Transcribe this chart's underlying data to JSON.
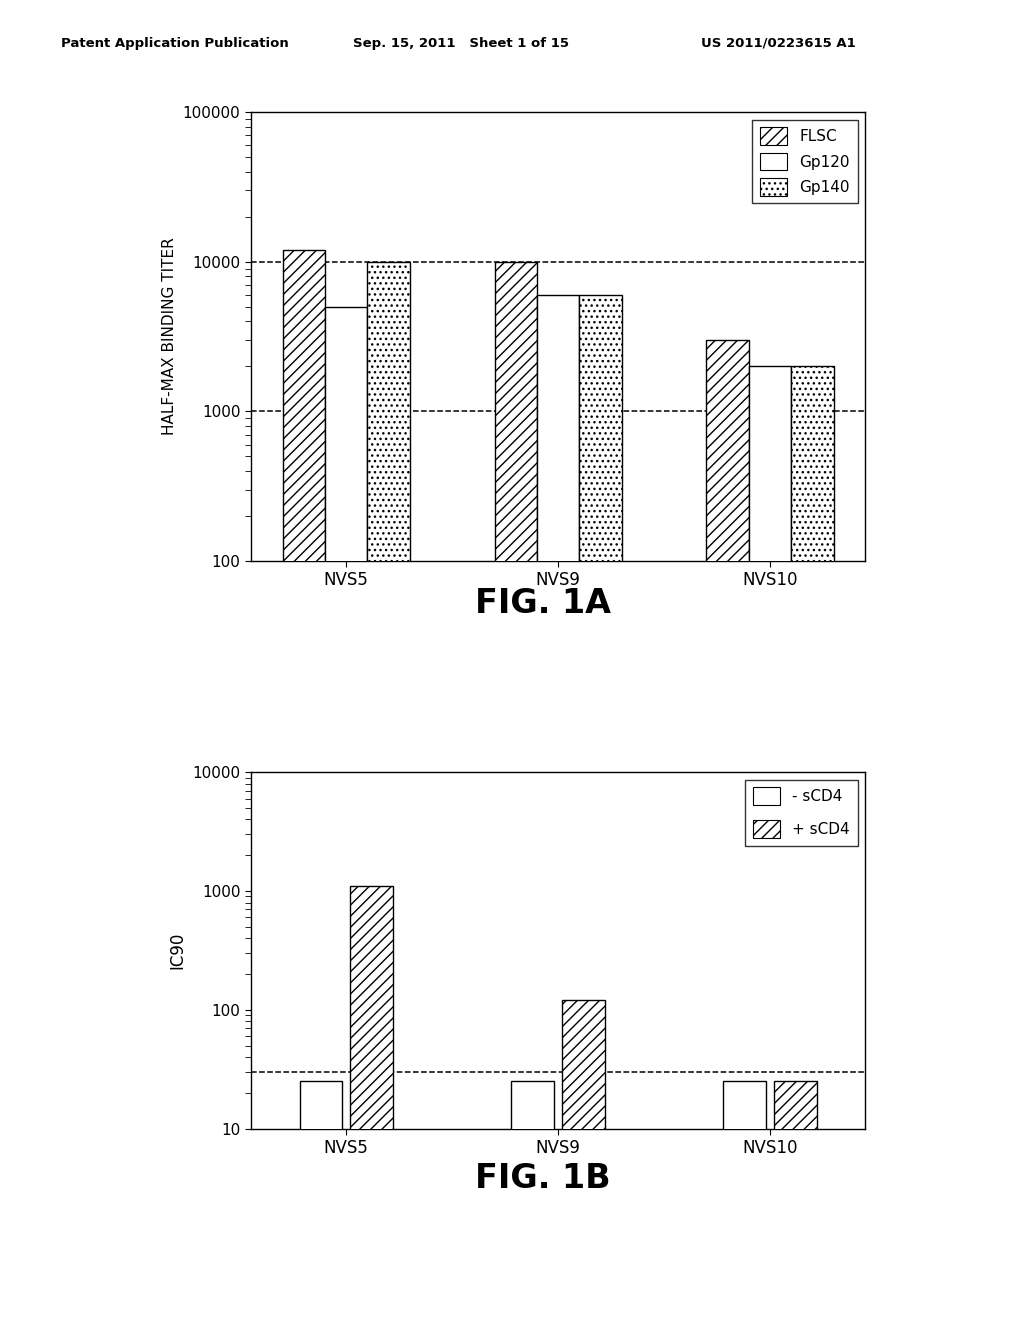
{
  "fig1a": {
    "categories": [
      "NVS5",
      "NVS9",
      "NVS10"
    ],
    "flsc": [
      12000,
      10000,
      3000
    ],
    "gp120": [
      5000,
      6000,
      2000
    ],
    "gp140": [
      10000,
      6000,
      2000
    ],
    "ylabel": "HALF-MAX BINDING TITER",
    "ylim": [
      100,
      100000
    ],
    "yticks": [
      100,
      1000,
      10000,
      100000
    ],
    "ytick_labels": [
      "100",
      "1000",
      "10000",
      "100000"
    ],
    "dashed_lines": [
      1000,
      10000
    ],
    "legend_labels": [
      "FLSC",
      "Gp120",
      "Gp140"
    ],
    "fig_label": "FIG. 1A"
  },
  "fig1b": {
    "categories": [
      "NVS5",
      "NVS9",
      "NVS10"
    ],
    "no_scd4": [
      25,
      25,
      25
    ],
    "plus_scd4": [
      1100,
      120,
      25
    ],
    "ylabel": "IC90",
    "ylim": [
      10,
      10000
    ],
    "yticks": [
      10,
      100,
      1000,
      10000
    ],
    "ytick_labels": [
      "10",
      "100",
      "1000",
      "10000"
    ],
    "dashed_lines": [
      30
    ],
    "legend_labels": [
      "- sCD4",
      "+ sCD4"
    ],
    "fig_label": "FIG. 1B"
  },
  "header_left": "Patent Application Publication",
  "header_center": "Sep. 15, 2011   Sheet 1 of 15",
  "header_right": "US 2011/0223615 A1",
  "background_color": "#ffffff",
  "bar_width": 0.2
}
